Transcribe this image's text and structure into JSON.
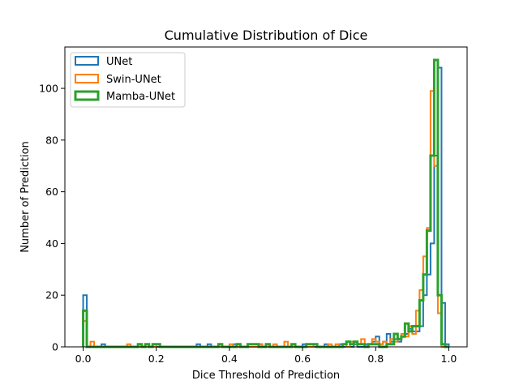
{
  "chart_data": {
    "type": "histogram-step",
    "title": "Cumulative Distribution of Dice",
    "xlabel": "Dice Threshold of Prediction",
    "ylabel": "Number of Prediction",
    "xlim": [
      -0.05,
      1.05
    ],
    "ylim": [
      0,
      116
    ],
    "xticks": [
      0.0,
      0.2,
      0.4,
      0.6,
      0.8,
      1.0
    ],
    "xtick_labels": [
      "0.0",
      "0.2",
      "0.4",
      "0.6",
      "0.8",
      "1.0"
    ],
    "yticks": [
      0,
      20,
      40,
      60,
      80,
      100
    ],
    "ytick_labels": [
      "0",
      "20",
      "40",
      "60",
      "80",
      "100"
    ],
    "grid": false,
    "legend_position": "upper-left",
    "bin_start": 0.0,
    "bin_width": 0.01,
    "series": [
      {
        "name": "UNet",
        "color": "#1f77b4",
        "counts": [
          20,
          0,
          0,
          0,
          0,
          1,
          0,
          0,
          0,
          0,
          0,
          0,
          0,
          0,
          0,
          0,
          0,
          0,
          0,
          0,
          0,
          0,
          0,
          0,
          0,
          0,
          0,
          0,
          0,
          0,
          0,
          1,
          0,
          0,
          1,
          0,
          0,
          0,
          0,
          0,
          0,
          1,
          0,
          0,
          0,
          0,
          0,
          0,
          1,
          0,
          0,
          0,
          0,
          0,
          0,
          0,
          0,
          0,
          0,
          0,
          1,
          0,
          0,
          0,
          0,
          0,
          1,
          0,
          0,
          0,
          1,
          0,
          0,
          0,
          1,
          0,
          0,
          1,
          1,
          2,
          4,
          1,
          2,
          5,
          2,
          3,
          2,
          4,
          5,
          7,
          6,
          6,
          8,
          20,
          28,
          40,
          74,
          108,
          17,
          1
        ]
      },
      {
        "name": "Swin-UNet",
        "color": "#ff7f0e",
        "counts": [
          10,
          0,
          2,
          0,
          0,
          0,
          0,
          0,
          0,
          0,
          0,
          0,
          1,
          0,
          0,
          0,
          0,
          0,
          0,
          0,
          1,
          0,
          0,
          0,
          0,
          0,
          0,
          0,
          0,
          0,
          0,
          0,
          0,
          0,
          0,
          0,
          0,
          0,
          0,
          0,
          1,
          0,
          0,
          0,
          0,
          0,
          0,
          0,
          1,
          0,
          0,
          0,
          1,
          0,
          0,
          2,
          0,
          0,
          0,
          0,
          0,
          0,
          0,
          1,
          0,
          0,
          0,
          1,
          0,
          1,
          0,
          1,
          0,
          2,
          2,
          1,
          3,
          0,
          1,
          3,
          2,
          1,
          2,
          1,
          3,
          2,
          3,
          5,
          4,
          8,
          5,
          14,
          22,
          35,
          46,
          99,
          70,
          13,
          0,
          0
        ]
      },
      {
        "name": "Mamba-UNet",
        "color": "#2ca02c",
        "counts": [
          14,
          0,
          0,
          0,
          0,
          0,
          0,
          0,
          0,
          0,
          0,
          0,
          0,
          0,
          0,
          1,
          0,
          1,
          0,
          1,
          1,
          0,
          0,
          0,
          0,
          0,
          0,
          0,
          0,
          0,
          0,
          0,
          0,
          0,
          0,
          0,
          0,
          1,
          0,
          0,
          0,
          0,
          1,
          0,
          0,
          1,
          1,
          1,
          0,
          0,
          1,
          0,
          0,
          0,
          0,
          0,
          0,
          1,
          0,
          0,
          0,
          1,
          1,
          1,
          0,
          0,
          0,
          0,
          0,
          0,
          0,
          1,
          2,
          1,
          2,
          1,
          1,
          0,
          1,
          1,
          1,
          0,
          0,
          1,
          1,
          5,
          3,
          4,
          9,
          6,
          8,
          8,
          18,
          28,
          45,
          74,
          111,
          20,
          1,
          0
        ]
      }
    ]
  }
}
